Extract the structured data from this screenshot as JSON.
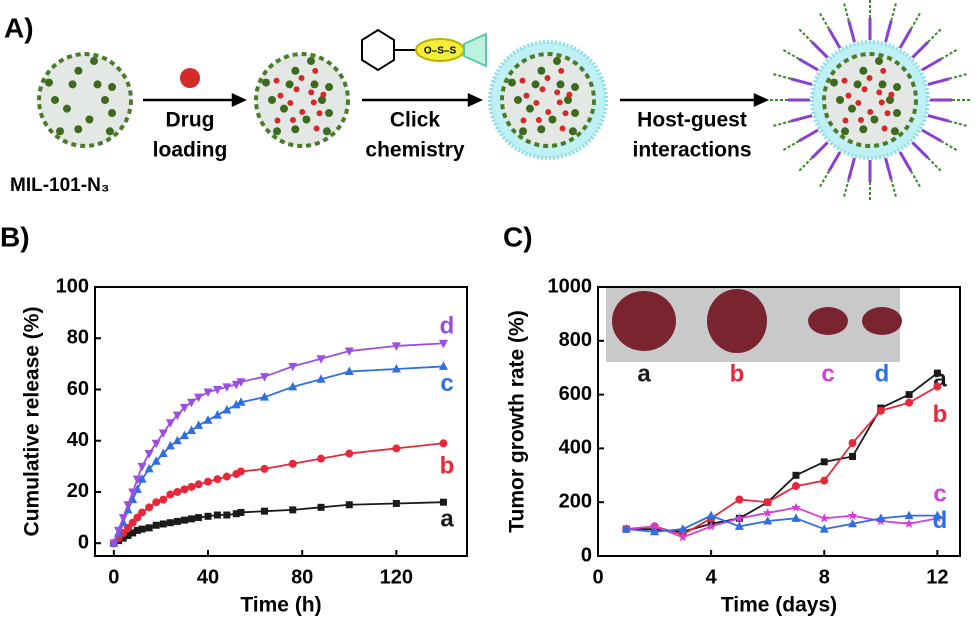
{
  "scheme": {
    "label": "A)",
    "steps": [
      [
        "Drug",
        "loading"
      ],
      [
        "Click",
        "chemistry"
      ],
      [
        "Host-guest",
        "interactions"
      ]
    ],
    "material": "MIL-101-N₃",
    "linker": "O–S–S"
  },
  "chart_data": [
    {
      "type": "line",
      "label": "B)",
      "xlabel": "Time (h)",
      "ylabel": "Cumulative release (%)",
      "x": [
        0,
        2,
        4,
        6,
        8,
        10,
        12,
        15,
        18,
        21,
        24,
        27,
        30,
        33,
        36,
        40,
        44,
        48,
        52,
        54,
        64,
        76,
        88,
        100,
        120,
        140
      ],
      "series": [
        {
          "name": "a",
          "color": "#1a1a1a",
          "marker": "square",
          "values": [
            0,
            1,
            2,
            3,
            4,
            5,
            5.5,
            6,
            7,
            7.5,
            8,
            8.5,
            9,
            9.5,
            10,
            10.5,
            11,
            11,
            11.5,
            12,
            12.5,
            13,
            14,
            15,
            15.5,
            16
          ]
        },
        {
          "name": "b",
          "color": "#e8283a",
          "marker": "circle",
          "values": [
            0,
            2,
            4,
            6,
            8,
            10,
            12,
            14,
            16,
            17,
            19,
            20,
            21,
            22,
            23,
            24,
            25,
            26,
            27,
            28,
            29,
            31,
            33,
            35,
            37,
            39
          ]
        },
        {
          "name": "c",
          "color": "#2f6fe0",
          "marker": "triangle-up",
          "values": [
            0,
            4,
            8,
            13,
            17,
            21,
            25,
            29,
            32,
            35,
            38,
            40,
            42,
            44,
            46,
            48,
            50,
            52,
            54,
            55,
            57,
            61,
            64,
            67,
            68,
            69
          ]
        },
        {
          "name": "d",
          "color": "#9b4fe0",
          "marker": "triangle-down",
          "values": [
            0,
            5,
            10,
            15,
            20,
            25,
            30,
            35,
            39,
            43,
            47,
            50,
            53,
            55,
            57,
            59,
            60,
            61,
            62,
            63,
            65,
            69,
            72,
            75,
            77,
            78
          ]
        }
      ],
      "xlim": [
        -8,
        150
      ],
      "ylim": [
        -5,
        100
      ],
      "xticks": [
        0,
        40,
        80,
        120
      ],
      "yticks": [
        0,
        20,
        40,
        60,
        80,
        100
      ]
    },
    {
      "type": "line",
      "label": "C)",
      "xlabel": "Time (days)",
      "ylabel": "Tumor growth rate (%)",
      "x": [
        1,
        2,
        3,
        4,
        5,
        6,
        7,
        8,
        9,
        10,
        11,
        12
      ],
      "series": [
        {
          "name": "a",
          "color": "#1a1a1a",
          "marker": "square",
          "values": [
            100,
            100,
            90,
            120,
            140,
            200,
            300,
            350,
            370,
            550,
            600,
            680
          ]
        },
        {
          "name": "b",
          "color": "#e8283a",
          "marker": "circle",
          "values": [
            100,
            110,
            80,
            140,
            210,
            200,
            260,
            280,
            420,
            540,
            570,
            630
          ]
        },
        {
          "name": "c",
          "color": "#d43fd4",
          "marker": "star",
          "values": [
            100,
            110,
            70,
            110,
            140,
            160,
            180,
            140,
            150,
            130,
            120,
            140
          ]
        },
        {
          "name": "d",
          "color": "#2f6fe0",
          "marker": "triangle-up",
          "values": [
            100,
            90,
            100,
            150,
            110,
            130,
            140,
            100,
            120,
            140,
            150,
            150
          ]
        }
      ],
      "xlim": [
        0,
        12.8
      ],
      "ylim": [
        0,
        1000
      ],
      "xticks": [
        0,
        4,
        8,
        12
      ],
      "yticks": [
        0,
        200,
        400,
        600,
        800,
        1000
      ]
    }
  ]
}
